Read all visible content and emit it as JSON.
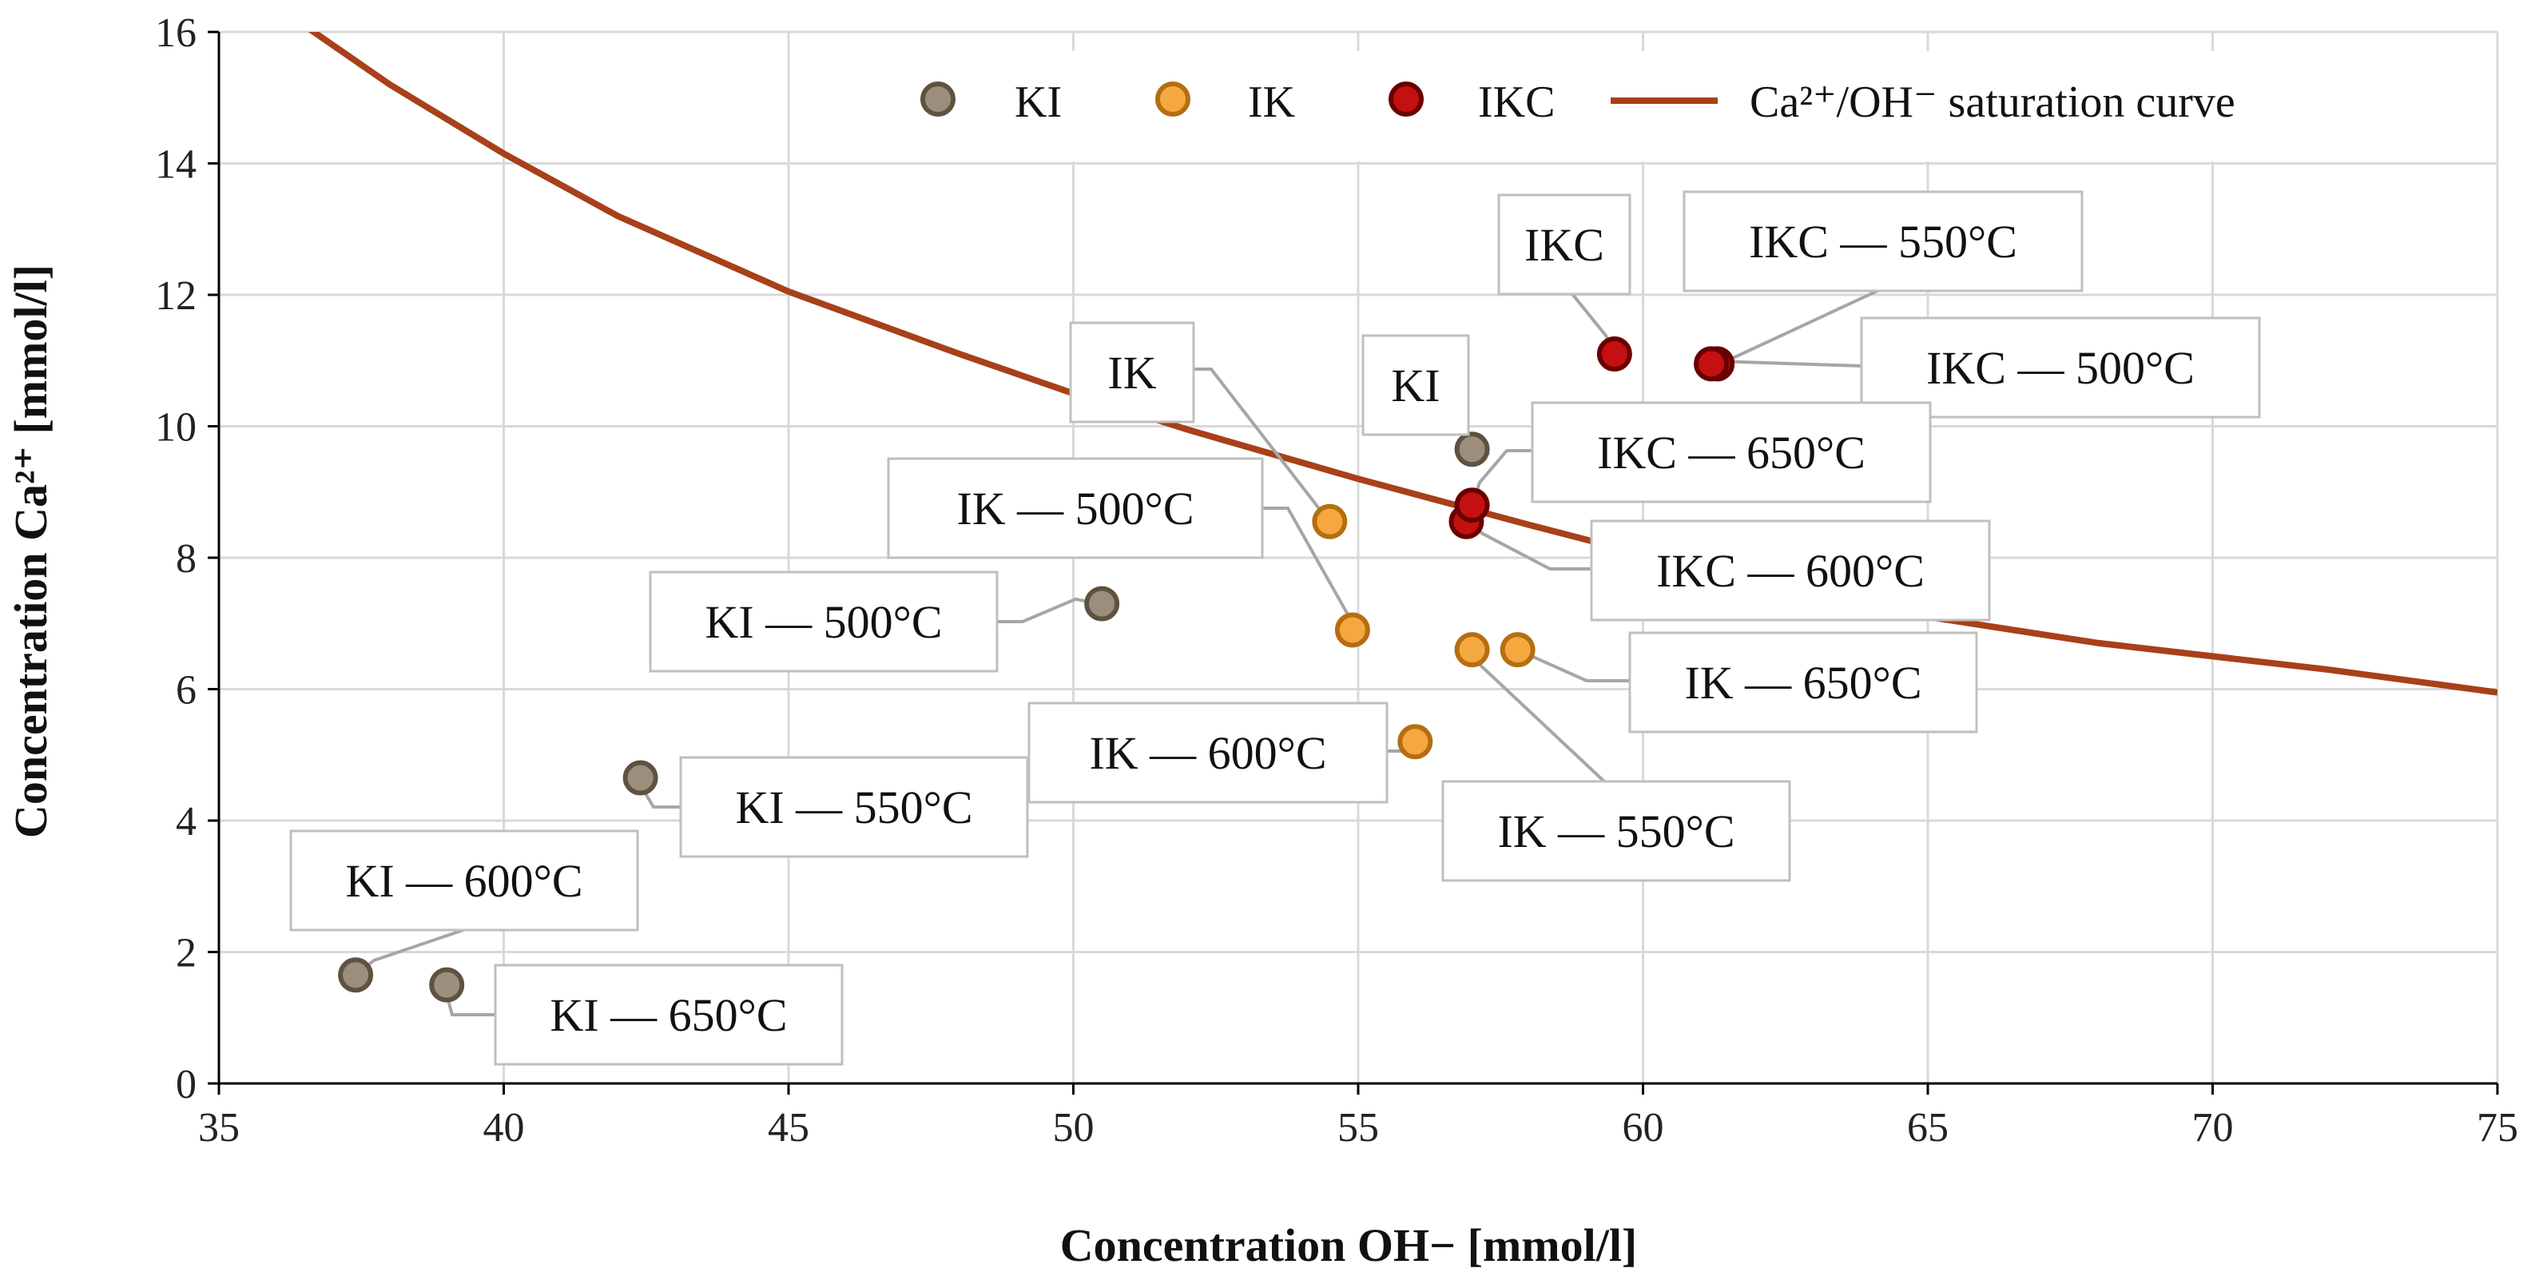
{
  "chart_data": {
    "type": "scatter",
    "xlabel": "Concentration OH− [mmol/l]",
    "ylabel": "Concentration Ca²⁺ [mmol/l]",
    "xlim": [
      35,
      75
    ],
    "ylim": [
      0,
      16
    ],
    "x_ticks": [
      35,
      40,
      45,
      50,
      55,
      60,
      65,
      70,
      75
    ],
    "y_ticks": [
      0,
      2,
      4,
      6,
      8,
      10,
      12,
      14,
      16
    ],
    "grid": true,
    "legend_position": "top-right",
    "legend": [
      {
        "key": "KI",
        "label": "KI"
      },
      {
        "key": "IK",
        "label": "IK"
      },
      {
        "key": "IKC",
        "label": "IKC"
      },
      {
        "key": "curve",
        "label": "Ca²⁺/OH⁻ saturation curve"
      }
    ],
    "colors": {
      "KI_fill": "#9c8e7c",
      "KI_edge": "#5e5240",
      "IK_fill": "#f5a840",
      "IK_edge": "#b56e10",
      "IKC_fill": "#c41010",
      "IKC_edge": "#6a0000",
      "curve": "#a8401a",
      "grid": "#d9d9d9",
      "leader": "#a6a6a6"
    },
    "series": [
      {
        "name": "KI",
        "points": [
          {
            "x": 57.0,
            "y": 9.65,
            "label": "KI"
          },
          {
            "x": 50.5,
            "y": 7.3,
            "label": "KI — 500°C"
          },
          {
            "x": 42.4,
            "y": 4.65,
            "label": "KI — 550°C"
          },
          {
            "x": 37.4,
            "y": 1.65,
            "label": "KI — 600°C"
          },
          {
            "x": 39.0,
            "y": 1.5,
            "label": "KI — 650°C"
          }
        ]
      },
      {
        "name": "IK",
        "points": [
          {
            "x": 54.5,
            "y": 8.55,
            "label": "IK"
          },
          {
            "x": 54.9,
            "y": 6.9,
            "label": "IK — 500°C"
          },
          {
            "x": 57.0,
            "y": 6.6,
            "label": "IK — 550°C"
          },
          {
            "x": 56.0,
            "y": 5.2,
            "label": "IK — 600°C"
          },
          {
            "x": 57.8,
            "y": 6.6,
            "label": "IK — 650°C"
          }
        ]
      },
      {
        "name": "IKC",
        "points": [
          {
            "x": 59.5,
            "y": 11.1,
            "label": "IKC"
          },
          {
            "x": 61.3,
            "y": 10.95,
            "label": "IKC — 500°C"
          },
          {
            "x": 61.2,
            "y": 10.95,
            "label": "IKC — 550°C"
          },
          {
            "x": 56.9,
            "y": 8.55,
            "label": "IKC — 600°C"
          },
          {
            "x": 57.0,
            "y": 8.8,
            "label": "IKC — 650°C"
          }
        ]
      }
    ],
    "curve": {
      "name": "Ca²⁺/OH⁻ saturation curve",
      "x": [
        36.5,
        38,
        40,
        42,
        45,
        48,
        50,
        52,
        55,
        58,
        60,
        62,
        65,
        68,
        70,
        72,
        75
      ],
      "y": [
        16.1,
        15.2,
        14.15,
        13.2,
        12.05,
        11.1,
        10.5,
        9.95,
        9.2,
        8.5,
        8.05,
        7.65,
        7.1,
        6.7,
        6.5,
        6.3,
        5.95
      ]
    }
  }
}
